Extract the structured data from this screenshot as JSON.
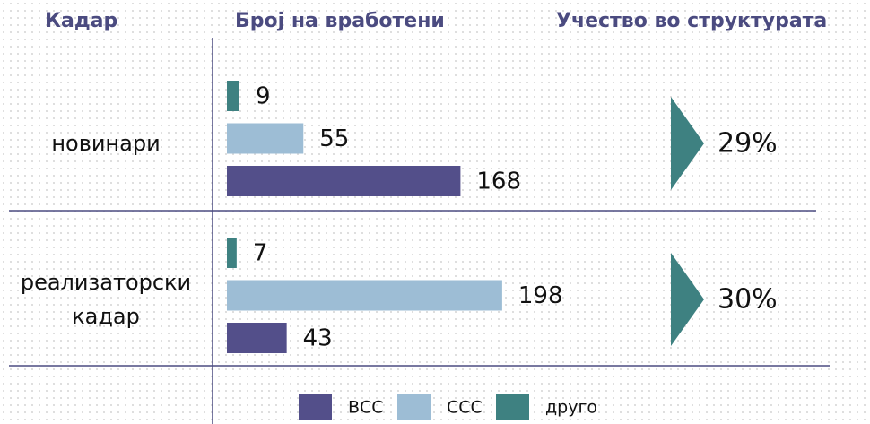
{
  "chart_data": {
    "type": "bar",
    "orientation": "horizontal",
    "headers": [
      "Кадар",
      "Број на вработени",
      "Учество во структурата"
    ],
    "categories": [
      "новинари",
      "реализаторски кадар"
    ],
    "series": [
      {
        "name": "друго",
        "color": "#3e8181",
        "values": [
          9,
          7
        ]
      },
      {
        "name": "ССС",
        "color": "#9dbdd5",
        "values": [
          55,
          198
        ]
      },
      {
        "name": "ВСС",
        "color": "#534f8a",
        "values": [
          168,
          43
        ]
      }
    ],
    "legend_order": [
      2,
      1,
      0
    ],
    "share": {
      "values": [
        29,
        30
      ],
      "value_labels": [
        "29%",
        "30%"
      ],
      "color": "#3e8181"
    }
  }
}
